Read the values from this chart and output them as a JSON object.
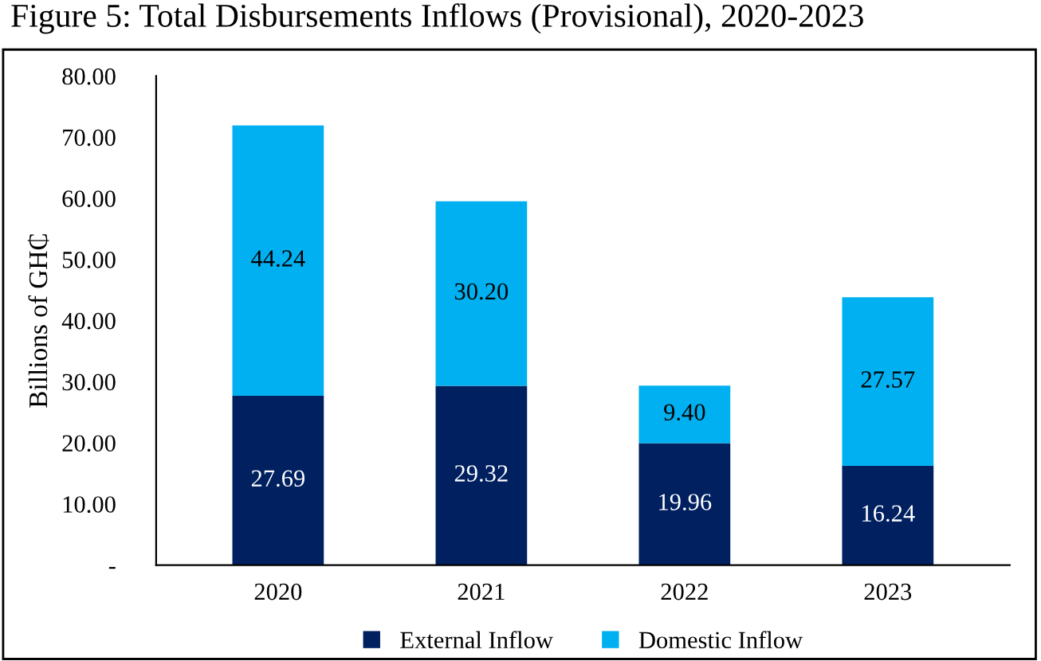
{
  "chart_data": {
    "type": "bar",
    "title": "Figure 5: Total Disbursements Inflows (Provisional), 2020-2023",
    "ylabel": "Billions of GH₵",
    "categories": [
      "2020",
      "2021",
      "2022",
      "2023"
    ],
    "stacked": true,
    "series": [
      {
        "name": "External Inflow",
        "color": "#002060",
        "values": [
          27.69,
          29.32,
          19.96,
          16.24
        ]
      },
      {
        "name": "Domestic Inflow",
        "color": "#00b0f0",
        "values": [
          44.24,
          30.2,
          9.4,
          27.57
        ]
      }
    ],
    "value_labels": [
      [
        "27.69",
        "29.32",
        "19.96",
        "16.24"
      ],
      [
        "44.24",
        "30.20",
        "9.40",
        "27.57"
      ]
    ],
    "ylim": [
      0,
      80
    ],
    "yticks": [
      {
        "value": 0,
        "label": "-"
      },
      {
        "value": 10,
        "label": "10.00"
      },
      {
        "value": 20,
        "label": "20.00"
      },
      {
        "value": 30,
        "label": "30.00"
      },
      {
        "value": 40,
        "label": "40.00"
      },
      {
        "value": 50,
        "label": "50.00"
      },
      {
        "value": 60,
        "label": "60.00"
      },
      {
        "value": 70,
        "label": "70.00"
      },
      {
        "value": 80,
        "label": "80.00"
      }
    ],
    "grid": false,
    "legend": "bottom"
  }
}
